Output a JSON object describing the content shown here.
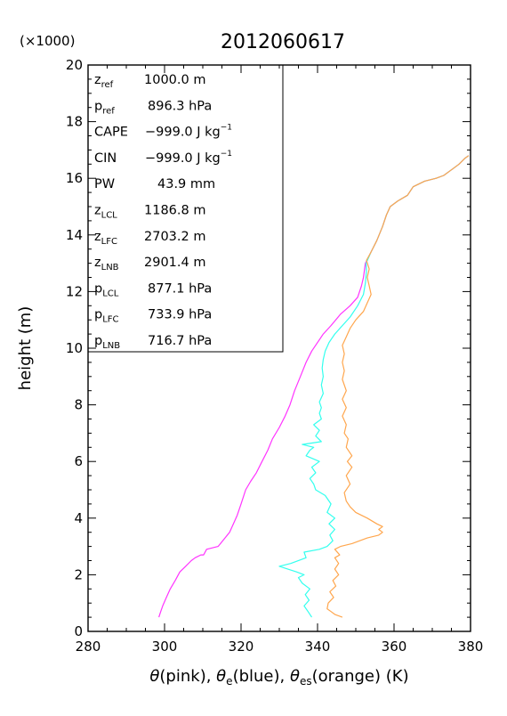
{
  "chart_data": {
    "type": "line",
    "title": "2012060617",
    "xlabel": "θ(pink), θe(blue), θes(orange)   (K)",
    "xlabel_parts": {
      "theta": "θ",
      "pink": "(pink), ",
      "theta_e": "θ",
      "e_sub": "e",
      "blue": "(blue), ",
      "theta_es": "θ",
      "es_sub": "es",
      "orange": "(orange)   (K)"
    },
    "ylabel": "height  (m)",
    "y_multiplier_label": "(×1000)",
    "xlim": [
      280,
      380
    ],
    "ylim": [
      0,
      20
    ],
    "x_ticks": [
      "280",
      "300",
      "320",
      "340",
      "360",
      "380"
    ],
    "y_ticks": [
      "0",
      "2",
      "4",
      "6",
      "8",
      "10",
      "12",
      "14",
      "16",
      "18",
      "20"
    ],
    "grid": false,
    "colors": {
      "theta": "#ff33ff",
      "theta_e": "#33ffee",
      "theta_es": "#ffa64d",
      "axis": "#000000"
    },
    "info_box": [
      {
        "label": "z",
        "sub": "ref",
        "value": "1000.0 m"
      },
      {
        "label": "p",
        "sub": "ref",
        "value": "896.3 hPa"
      },
      {
        "label": "CAPE",
        "value": "−999.0 J kg",
        "sup": "−1"
      },
      {
        "label": "CIN",
        "value": "−999.0 J kg",
        "sup": "−1"
      },
      {
        "label": "PW",
        "value": "43.9 mm"
      },
      {
        "label": "z",
        "sub": "LCL",
        "value": "1186.8 m"
      },
      {
        "label": "z",
        "sub": "LFC",
        "value": "2703.2 m"
      },
      {
        "label": "z",
        "sub": "LNB",
        "value": "2901.4 m"
      },
      {
        "label": "p",
        "sub": "LCL",
        "value": "877.1 hPa"
      },
      {
        "label": "p",
        "sub": "LFC",
        "value": "733.9 hPa"
      },
      {
        "label": "p",
        "sub": "LNB",
        "value": "716.7 hPa"
      }
    ],
    "series": [
      {
        "name": "θ",
        "color": "#ff33ff",
        "points": [
          [
            298.5,
            0.5
          ],
          [
            299.0,
            0.7
          ],
          [
            299.5,
            0.9
          ],
          [
            300.5,
            1.2
          ],
          [
            301.5,
            1.5
          ],
          [
            302.8,
            1.8
          ],
          [
            304.0,
            2.1
          ],
          [
            305.5,
            2.3
          ],
          [
            307.0,
            2.5
          ],
          [
            308.0,
            2.6
          ],
          [
            309.5,
            2.7
          ],
          [
            310.2,
            2.7
          ],
          [
            311.0,
            2.9
          ],
          [
            314.0,
            3.0
          ],
          [
            315.2,
            3.2
          ],
          [
            317.0,
            3.5
          ],
          [
            318.0,
            3.8
          ],
          [
            319.0,
            4.1
          ],
          [
            320.0,
            4.5
          ],
          [
            321.2,
            5.0
          ],
          [
            322.5,
            5.3
          ],
          [
            324.0,
            5.6
          ],
          [
            325.5,
            6.0
          ],
          [
            327.0,
            6.4
          ],
          [
            328.2,
            6.8
          ],
          [
            330.0,
            7.2
          ],
          [
            331.5,
            7.6
          ],
          [
            332.8,
            8.0
          ],
          [
            334.0,
            8.5
          ],
          [
            335.5,
            9.0
          ],
          [
            337.0,
            9.5
          ],
          [
            338.5,
            9.9
          ],
          [
            340.0,
            10.2
          ],
          [
            341.5,
            10.5
          ],
          [
            343.5,
            10.8
          ],
          [
            346.0,
            11.2
          ],
          [
            348.5,
            11.5
          ],
          [
            350.5,
            11.8
          ],
          [
            351.5,
            12.2
          ],
          [
            352.0,
            12.5
          ],
          [
            352.5,
            13.0
          ],
          [
            354.0,
            13.4
          ],
          [
            355.5,
            13.8
          ],
          [
            357.0,
            14.3
          ],
          [
            358.0,
            14.7
          ],
          [
            359.0,
            15.0
          ],
          [
            361.0,
            15.2
          ],
          [
            363.5,
            15.4
          ],
          [
            365.0,
            15.7
          ],
          [
            368.0,
            15.9
          ],
          [
            371.0,
            16.0
          ],
          [
            373.0,
            16.1
          ],
          [
            375.0,
            16.3
          ],
          [
            377.0,
            16.5
          ],
          [
            378.5,
            16.7
          ],
          [
            379.5,
            16.8
          ]
        ]
      },
      {
        "name": "θe",
        "color": "#33ffee",
        "points": [
          [
            338.5,
            0.5
          ],
          [
            337.5,
            0.7
          ],
          [
            336.5,
            0.9
          ],
          [
            337.8,
            1.1
          ],
          [
            336.8,
            1.3
          ],
          [
            338.0,
            1.5
          ],
          [
            336.0,
            1.7
          ],
          [
            335.0,
            1.9
          ],
          [
            336.5,
            2.0
          ],
          [
            334.5,
            2.1
          ],
          [
            330.0,
            2.3
          ],
          [
            333.0,
            2.4
          ],
          [
            337.0,
            2.6
          ],
          [
            336.5,
            2.8
          ],
          [
            340.5,
            2.9
          ],
          [
            342.5,
            3.0
          ],
          [
            344.0,
            3.2
          ],
          [
            343.2,
            3.4
          ],
          [
            344.5,
            3.6
          ],
          [
            343.0,
            3.8
          ],
          [
            344.5,
            4.0
          ],
          [
            342.5,
            4.2
          ],
          [
            343.5,
            4.5
          ],
          [
            342.0,
            4.8
          ],
          [
            339.5,
            5.0
          ],
          [
            339.0,
            5.2
          ],
          [
            338.0,
            5.4
          ],
          [
            339.5,
            5.6
          ],
          [
            338.5,
            5.8
          ],
          [
            340.5,
            6.0
          ],
          [
            337.0,
            6.2
          ],
          [
            338.0,
            6.4
          ],
          [
            339.0,
            6.5
          ],
          [
            336.0,
            6.6
          ],
          [
            341.0,
            6.7
          ],
          [
            339.5,
            6.9
          ],
          [
            340.5,
            7.1
          ],
          [
            339.0,
            7.3
          ],
          [
            341.0,
            7.5
          ],
          [
            340.5,
            7.7
          ],
          [
            341.0,
            7.9
          ],
          [
            340.5,
            8.1
          ],
          [
            341.5,
            8.4
          ],
          [
            341.0,
            8.7
          ],
          [
            341.5,
            9.0
          ],
          [
            341.2,
            9.3
          ],
          [
            341.5,
            9.6
          ],
          [
            342.0,
            9.9
          ],
          [
            343.0,
            10.2
          ],
          [
            344.5,
            10.5
          ],
          [
            346.5,
            10.8
          ],
          [
            348.5,
            11.1
          ],
          [
            350.5,
            11.5
          ],
          [
            352.0,
            11.9
          ],
          [
            352.5,
            12.3
          ],
          [
            352.8,
            12.7
          ],
          [
            352.7,
            13.0
          ],
          [
            354.0,
            13.4
          ],
          [
            355.5,
            13.8
          ],
          [
            357.0,
            14.3
          ],
          [
            358.0,
            14.7
          ],
          [
            359.0,
            15.0
          ],
          [
            361.0,
            15.2
          ],
          [
            363.5,
            15.4
          ],
          [
            365.0,
            15.7
          ],
          [
            368.0,
            15.9
          ],
          [
            371.0,
            16.0
          ],
          [
            373.0,
            16.1
          ],
          [
            375.0,
            16.3
          ],
          [
            377.0,
            16.5
          ],
          [
            378.5,
            16.7
          ],
          [
            379.5,
            16.8
          ]
        ]
      },
      {
        "name": "θes",
        "color": "#ffa64d",
        "points": [
          [
            346.5,
            0.5
          ],
          [
            344.5,
            0.6
          ],
          [
            343.5,
            0.7
          ],
          [
            342.5,
            0.8
          ],
          [
            342.8,
            1.0
          ],
          [
            344.2,
            1.2
          ],
          [
            343.2,
            1.4
          ],
          [
            344.8,
            1.6
          ],
          [
            344.0,
            1.8
          ],
          [
            345.5,
            2.0
          ],
          [
            344.5,
            2.2
          ],
          [
            345.5,
            2.4
          ],
          [
            344.5,
            2.6
          ],
          [
            345.8,
            2.7
          ],
          [
            344.5,
            2.9
          ],
          [
            346.0,
            3.0
          ],
          [
            349.0,
            3.1
          ],
          [
            353.0,
            3.3
          ],
          [
            356.0,
            3.4
          ],
          [
            357.0,
            3.5
          ],
          [
            356.0,
            3.6
          ],
          [
            357.0,
            3.7
          ],
          [
            355.5,
            3.8
          ],
          [
            353.0,
            4.0
          ],
          [
            350.0,
            4.2
          ],
          [
            348.5,
            4.4
          ],
          [
            347.5,
            4.6
          ],
          [
            347.0,
            4.9
          ],
          [
            348.5,
            5.2
          ],
          [
            347.5,
            5.5
          ],
          [
            349.0,
            5.8
          ],
          [
            347.8,
            6.0
          ],
          [
            349.0,
            6.2
          ],
          [
            347.5,
            6.5
          ],
          [
            348.0,
            6.8
          ],
          [
            347.0,
            7.0
          ],
          [
            347.5,
            7.3
          ],
          [
            346.5,
            7.6
          ],
          [
            347.5,
            7.9
          ],
          [
            346.5,
            8.2
          ],
          [
            347.5,
            8.5
          ],
          [
            346.5,
            8.9
          ],
          [
            347.0,
            9.2
          ],
          [
            346.5,
            9.5
          ],
          [
            347.0,
            9.8
          ],
          [
            346.5,
            10.1
          ],
          [
            347.5,
            10.4
          ],
          [
            348.5,
            10.7
          ],
          [
            350.0,
            11.0
          ],
          [
            352.0,
            11.3
          ],
          [
            353.0,
            11.6
          ],
          [
            354.0,
            11.9
          ],
          [
            353.5,
            12.2
          ],
          [
            353.0,
            12.5
          ],
          [
            353.5,
            12.8
          ],
          [
            352.8,
            13.1
          ],
          [
            354.0,
            13.4
          ],
          [
            355.5,
            13.8
          ],
          [
            357.0,
            14.3
          ],
          [
            358.0,
            14.7
          ],
          [
            359.0,
            15.0
          ],
          [
            361.0,
            15.2
          ],
          [
            363.5,
            15.4
          ],
          [
            365.0,
            15.7
          ],
          [
            368.0,
            15.9
          ],
          [
            371.0,
            16.0
          ],
          [
            373.0,
            16.1
          ],
          [
            375.0,
            16.3
          ],
          [
            377.0,
            16.5
          ],
          [
            378.5,
            16.7
          ],
          [
            379.5,
            16.8
          ]
        ]
      }
    ]
  }
}
